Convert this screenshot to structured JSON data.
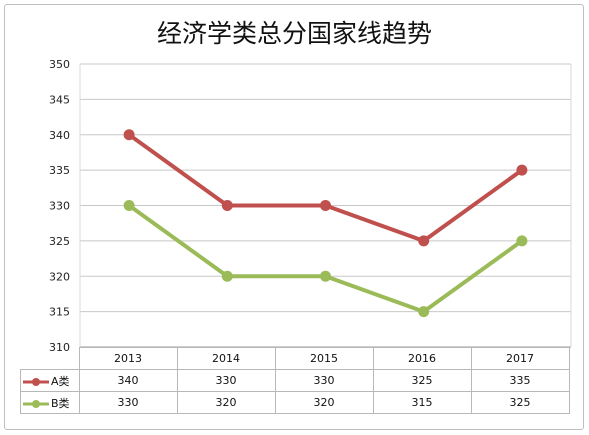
{
  "title": "经济学类总分国家线趋势",
  "chart_data": {
    "type": "line",
    "title": "经济学类总分国家线趋势",
    "categories": [
      "2013",
      "2014",
      "2015",
      "2016",
      "2017"
    ],
    "yticks": [
      "310",
      "315",
      "320",
      "325",
      "330",
      "335",
      "340",
      "345",
      "350"
    ],
    "ylim": [
      310,
      350
    ],
    "grid": true,
    "legend_position": "data-table",
    "series": [
      {
        "name": "A类",
        "values": [
          340,
          330,
          330,
          325,
          335
        ],
        "color": "#c0504d"
      },
      {
        "name": "B类",
        "values": [
          330,
          320,
          320,
          315,
          325
        ],
        "color": "#9bbb59"
      }
    ]
  },
  "table": {
    "rows": [
      [
        "340",
        "330",
        "330",
        "325",
        "335"
      ],
      [
        "330",
        "320",
        "320",
        "315",
        "325"
      ]
    ]
  }
}
